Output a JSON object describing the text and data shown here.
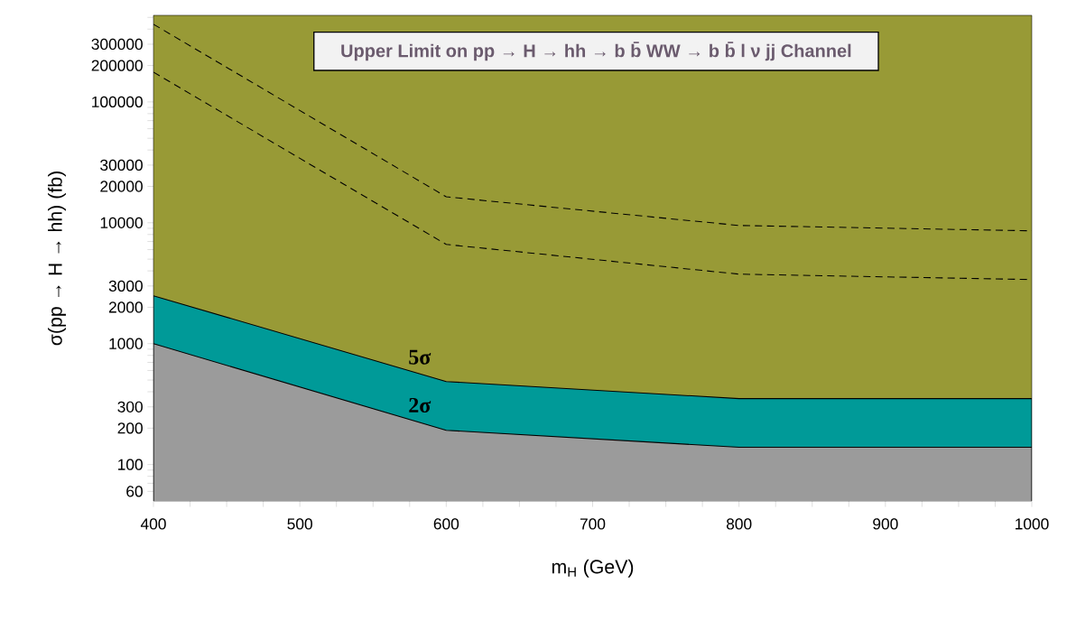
{
  "chart_data": {
    "type": "area",
    "title": "Upper Limit on pp → H → hh → b b̄ WW → b b̄ l ν jj Channel",
    "xlabel": "m$_{H}$ (GeV)",
    "ylabel": "σ(pp → H → hh) (fb)",
    "x": [
      400,
      600,
      800,
      1000
    ],
    "series": [
      {
        "color": "#009a98",
        "values": [
          2490,
          486,
          351,
          351
        ]
      },
      {
        "color": "#9b9b9b",
        "values": [
          1000,
          192,
          139,
          139
        ]
      },
      {
        "type": "line",
        "color": "#000000",
        "line_style": "dashed",
        "values": [
          439000,
          16400,
          9500,
          8580
        ]
      },
      {
        "type": "line",
        "color": "#000000",
        "line_style": "dashed",
        "values": [
          176000,
          6620,
          3760,
          3390
        ]
      }
    ],
    "log": "y",
    "xlim": [
      400,
      1000
    ],
    "ylim": [
      50,
      520000
    ],
    "xticks": [
      400,
      {
        "value": 425,
        "label": null
      },
      {
        "value": 450,
        "label": null
      },
      {
        "value": 475,
        "label": null
      },
      500,
      {
        "value": 525,
        "label": null
      },
      {
        "value": 550,
        "label": null
      },
      {
        "value": 575,
        "label": null
      },
      600,
      {
        "value": 625,
        "label": null
      },
      {
        "value": 650,
        "label": null
      },
      {
        "value": 675,
        "label": null
      },
      700,
      {
        "value": 725,
        "label": null
      },
      {
        "value": 750,
        "label": null
      },
      {
        "value": 775,
        "label": null
      },
      800,
      {
        "value": 825,
        "label": null
      },
      {
        "value": 850,
        "label": null
      },
      {
        "value": 875,
        "label": null
      },
      900,
      {
        "value": 925,
        "label": null
      },
      {
        "value": 950,
        "label": null
      },
      {
        "value": 975,
        "label": null
      },
      1000
    ],
    "yticks": [
      60,
      {
        "value": 70,
        "label": null
      },
      {
        "value": 80,
        "label": null
      },
      {
        "value": 90,
        "label": null
      },
      100,
      200,
      300,
      {
        "value": 400,
        "label": null
      },
      {
        "value": 500,
        "label": null
      },
      {
        "value": 600,
        "label": null
      },
      {
        "value": 700,
        "label": null
      },
      {
        "value": 800,
        "label": null
      },
      {
        "value": 900,
        "label": null
      },
      1000,
      2000,
      3000,
      {
        "value": 4000,
        "label": null
      },
      {
        "value": 5000,
        "label": null
      },
      {
        "value": 6000,
        "label": null
      },
      {
        "value": 7000,
        "label": null
      },
      {
        "value": 8000,
        "label": null
      },
      {
        "value": 9000,
        "label": null
      },
      10000,
      20000,
      30000,
      {
        "value": 40000,
        "label": null
      },
      {
        "value": 50000,
        "label": null
      },
      {
        "value": 60000,
        "label": null
      },
      {
        "value": 70000,
        "label": null
      },
      {
        "value": 80000,
        "label": null
      },
      {
        "value": 90000,
        "label": null
      },
      100000,
      200000,
      300000,
      {
        "value": 400000,
        "label": null
      },
      {
        "value": 500000,
        "label": null
      }
    ],
    "annotations": [
      "5σ",
      "2σ"
    ]
  }
}
